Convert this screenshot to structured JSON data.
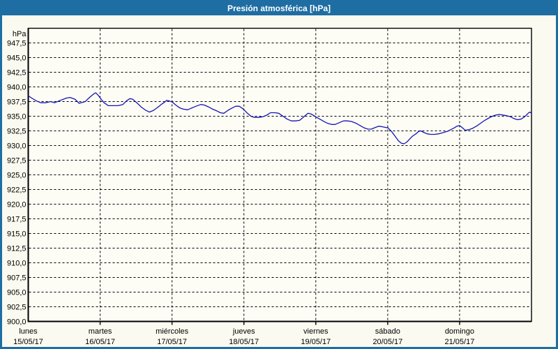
{
  "window": {
    "title": "Presión atmosférica [hPa]"
  },
  "colors": {
    "frame": "#1e6da3",
    "titlebar_bg": "#1e6da3",
    "titlebar_text": "#ffffff",
    "background": "#fafaf0",
    "plot_bg": "#fdfdf6",
    "grid": "#000000",
    "axis": "#000000",
    "line": "#1414b4",
    "label_text": "#000000"
  },
  "chart_data": {
    "type": "line",
    "title": "Presión atmosférica [hPa]",
    "ylabel": "hPa",
    "xlabel": "",
    "ylim": [
      900,
      950
    ],
    "y_tick_step": 2.5,
    "grid": "dashed",
    "legend": "none",
    "y_ticks": {
      "labels": [
        "947,5",
        "945,0",
        "942,5",
        "940,0",
        "937,5",
        "935,0",
        "932,5",
        "930,0",
        "927,5",
        "925,0",
        "922,5",
        "920,0",
        "917,5",
        "915,0",
        "912,5",
        "910,0",
        "907,5",
        "905,0",
        "902,5",
        "900,0"
      ],
      "values": [
        947.5,
        945.0,
        942.5,
        940.0,
        937.5,
        935.0,
        932.5,
        930.0,
        927.5,
        925.0,
        922.5,
        920.0,
        917.5,
        915.0,
        912.5,
        910.0,
        907.5,
        905.0,
        902.5,
        900.0
      ]
    },
    "x_ticks": [
      {
        "day": "lunes",
        "date": "15/05/17",
        "t": 0
      },
      {
        "day": "martes",
        "date": "16/05/17",
        "t": 1
      },
      {
        "day": "miércoles",
        "date": "17/05/17",
        "t": 2
      },
      {
        "day": "jueves",
        "date": "18/05/17",
        "t": 3
      },
      {
        "day": "viernes",
        "date": "19/05/17",
        "t": 4
      },
      {
        "day": "sábado",
        "date": "20/05/17",
        "t": 5
      },
      {
        "day": "domingo",
        "date": "21/05/17",
        "t": 6
      }
    ],
    "x_range_days": 7,
    "series": [
      {
        "name": "Presión atmosférica",
        "units": "hPa",
        "points": [
          [
            0,
            938.5
          ],
          [
            0.048,
            938.1
          ],
          [
            0.116,
            937.6
          ],
          [
            0.174,
            937.3
          ],
          [
            0.242,
            937.3
          ],
          [
            0.31,
            937.5
          ],
          [
            0.368,
            937.3
          ],
          [
            0.445,
            937.7
          ],
          [
            0.532,
            938.1
          ],
          [
            0.581,
            938.2
          ],
          [
            0.649,
            937.9
          ],
          [
            0.707,
            937.2
          ],
          [
            0.794,
            937.5
          ],
          [
            0.852,
            938.2
          ],
          [
            0.91,
            938.8
          ],
          [
            0.939,
            939.0
          ],
          [
            0.978,
            938.5
          ],
          [
            1.007,
            938.0
          ],
          [
            1.055,
            937.3
          ],
          [
            1.113,
            936.8
          ],
          [
            1.181,
            936.8
          ],
          [
            1.249,
            936.8
          ],
          [
            1.317,
            937.0
          ],
          [
            1.365,
            937.6
          ],
          [
            1.413,
            938.0
          ],
          [
            1.452,
            937.9
          ],
          [
            1.51,
            937.3
          ],
          [
            1.578,
            936.5
          ],
          [
            1.636,
            936.0
          ],
          [
            1.684,
            935.7
          ],
          [
            1.742,
            936.0
          ],
          [
            1.8,
            936.5
          ],
          [
            1.849,
            937.0
          ],
          [
            1.897,
            937.4
          ],
          [
            1.926,
            937.7
          ],
          [
            1.965,
            937.6
          ],
          [
            2.004,
            937.4
          ],
          [
            2.052,
            936.9
          ],
          [
            2.11,
            936.4
          ],
          [
            2.159,
            936.2
          ],
          [
            2.217,
            936.1
          ],
          [
            2.275,
            936.4
          ],
          [
            2.333,
            936.7
          ],
          [
            2.4,
            937.0
          ],
          [
            2.449,
            936.9
          ],
          [
            2.507,
            936.6
          ],
          [
            2.565,
            936.2
          ],
          [
            2.623,
            935.9
          ],
          [
            2.672,
            935.6
          ],
          [
            2.72,
            935.5
          ],
          [
            2.778,
            936.0
          ],
          [
            2.836,
            936.4
          ],
          [
            2.885,
            936.7
          ],
          [
            2.933,
            936.7
          ],
          [
            2.972,
            936.4
          ],
          [
            3.001,
            936.1
          ],
          [
            3.049,
            935.5
          ],
          [
            3.098,
            935.0
          ],
          [
            3.146,
            934.8
          ],
          [
            3.204,
            934.8
          ],
          [
            3.262,
            934.9
          ],
          [
            3.32,
            935.2
          ],
          [
            3.369,
            935.6
          ],
          [
            3.436,
            935.6
          ],
          [
            3.485,
            935.5
          ],
          [
            3.543,
            935.0
          ],
          [
            3.601,
            934.5
          ],
          [
            3.659,
            934.2
          ],
          [
            3.717,
            934.2
          ],
          [
            3.775,
            934.3
          ],
          [
            3.824,
            934.8
          ],
          [
            3.862,
            935.2
          ],
          [
            3.891,
            935.5
          ],
          [
            3.93,
            935.4
          ],
          [
            3.959,
            935.2
          ],
          [
            3.998,
            934.9
          ],
          [
            4.056,
            934.5
          ],
          [
            4.114,
            934.1
          ],
          [
            4.162,
            933.8
          ],
          [
            4.22,
            933.6
          ],
          [
            4.269,
            933.6
          ],
          [
            4.327,
            933.9
          ],
          [
            4.385,
            934.2
          ],
          [
            4.443,
            934.2
          ],
          [
            4.501,
            934.1
          ],
          [
            4.559,
            933.8
          ],
          [
            4.617,
            933.4
          ],
          [
            4.675,
            933.0
          ],
          [
            4.724,
            932.8
          ],
          [
            4.772,
            932.8
          ],
          [
            4.83,
            933.1
          ],
          [
            4.879,
            933.3
          ],
          [
            4.927,
            933.2
          ],
          [
            4.966,
            933.1
          ],
          [
            5.005,
            933.0
          ],
          [
            5.053,
            932.4
          ],
          [
            5.102,
            931.6
          ],
          [
            5.15,
            930.8
          ],
          [
            5.189,
            930.4
          ],
          [
            5.227,
            930.3
          ],
          [
            5.266,
            930.6
          ],
          [
            5.305,
            931.1
          ],
          [
            5.344,
            931.6
          ],
          [
            5.392,
            932.0
          ],
          [
            5.431,
            932.4
          ],
          [
            5.46,
            932.5
          ],
          [
            5.508,
            932.2
          ],
          [
            5.547,
            932.0
          ],
          [
            5.595,
            931.9
          ],
          [
            5.653,
            931.9
          ],
          [
            5.711,
            932.0
          ],
          [
            5.769,
            932.2
          ],
          [
            5.828,
            932.4
          ],
          [
            5.876,
            932.7
          ],
          [
            5.924,
            933.0
          ],
          [
            5.963,
            933.3
          ],
          [
            6.002,
            933.4
          ],
          [
            6.041,
            933.0
          ],
          [
            6.079,
            932.6
          ],
          [
            6.128,
            932.7
          ],
          [
            6.176,
            932.9
          ],
          [
            6.234,
            933.3
          ],
          [
            6.292,
            933.8
          ],
          [
            6.35,
            934.3
          ],
          [
            6.408,
            934.7
          ],
          [
            6.457,
            935.0
          ],
          [
            6.505,
            935.2
          ],
          [
            6.553,
            935.3
          ],
          [
            6.602,
            935.2
          ],
          [
            6.65,
            935.1
          ],
          [
            6.708,
            934.9
          ],
          [
            6.757,
            934.6
          ],
          [
            6.805,
            934.4
          ],
          [
            6.853,
            934.5
          ],
          [
            6.892,
            934.8
          ],
          [
            6.931,
            935.2
          ],
          [
            6.96,
            935.6
          ],
          [
            6.979,
            935.7
          ],
          [
            6.999,
            935.5
          ]
        ]
      }
    ]
  }
}
